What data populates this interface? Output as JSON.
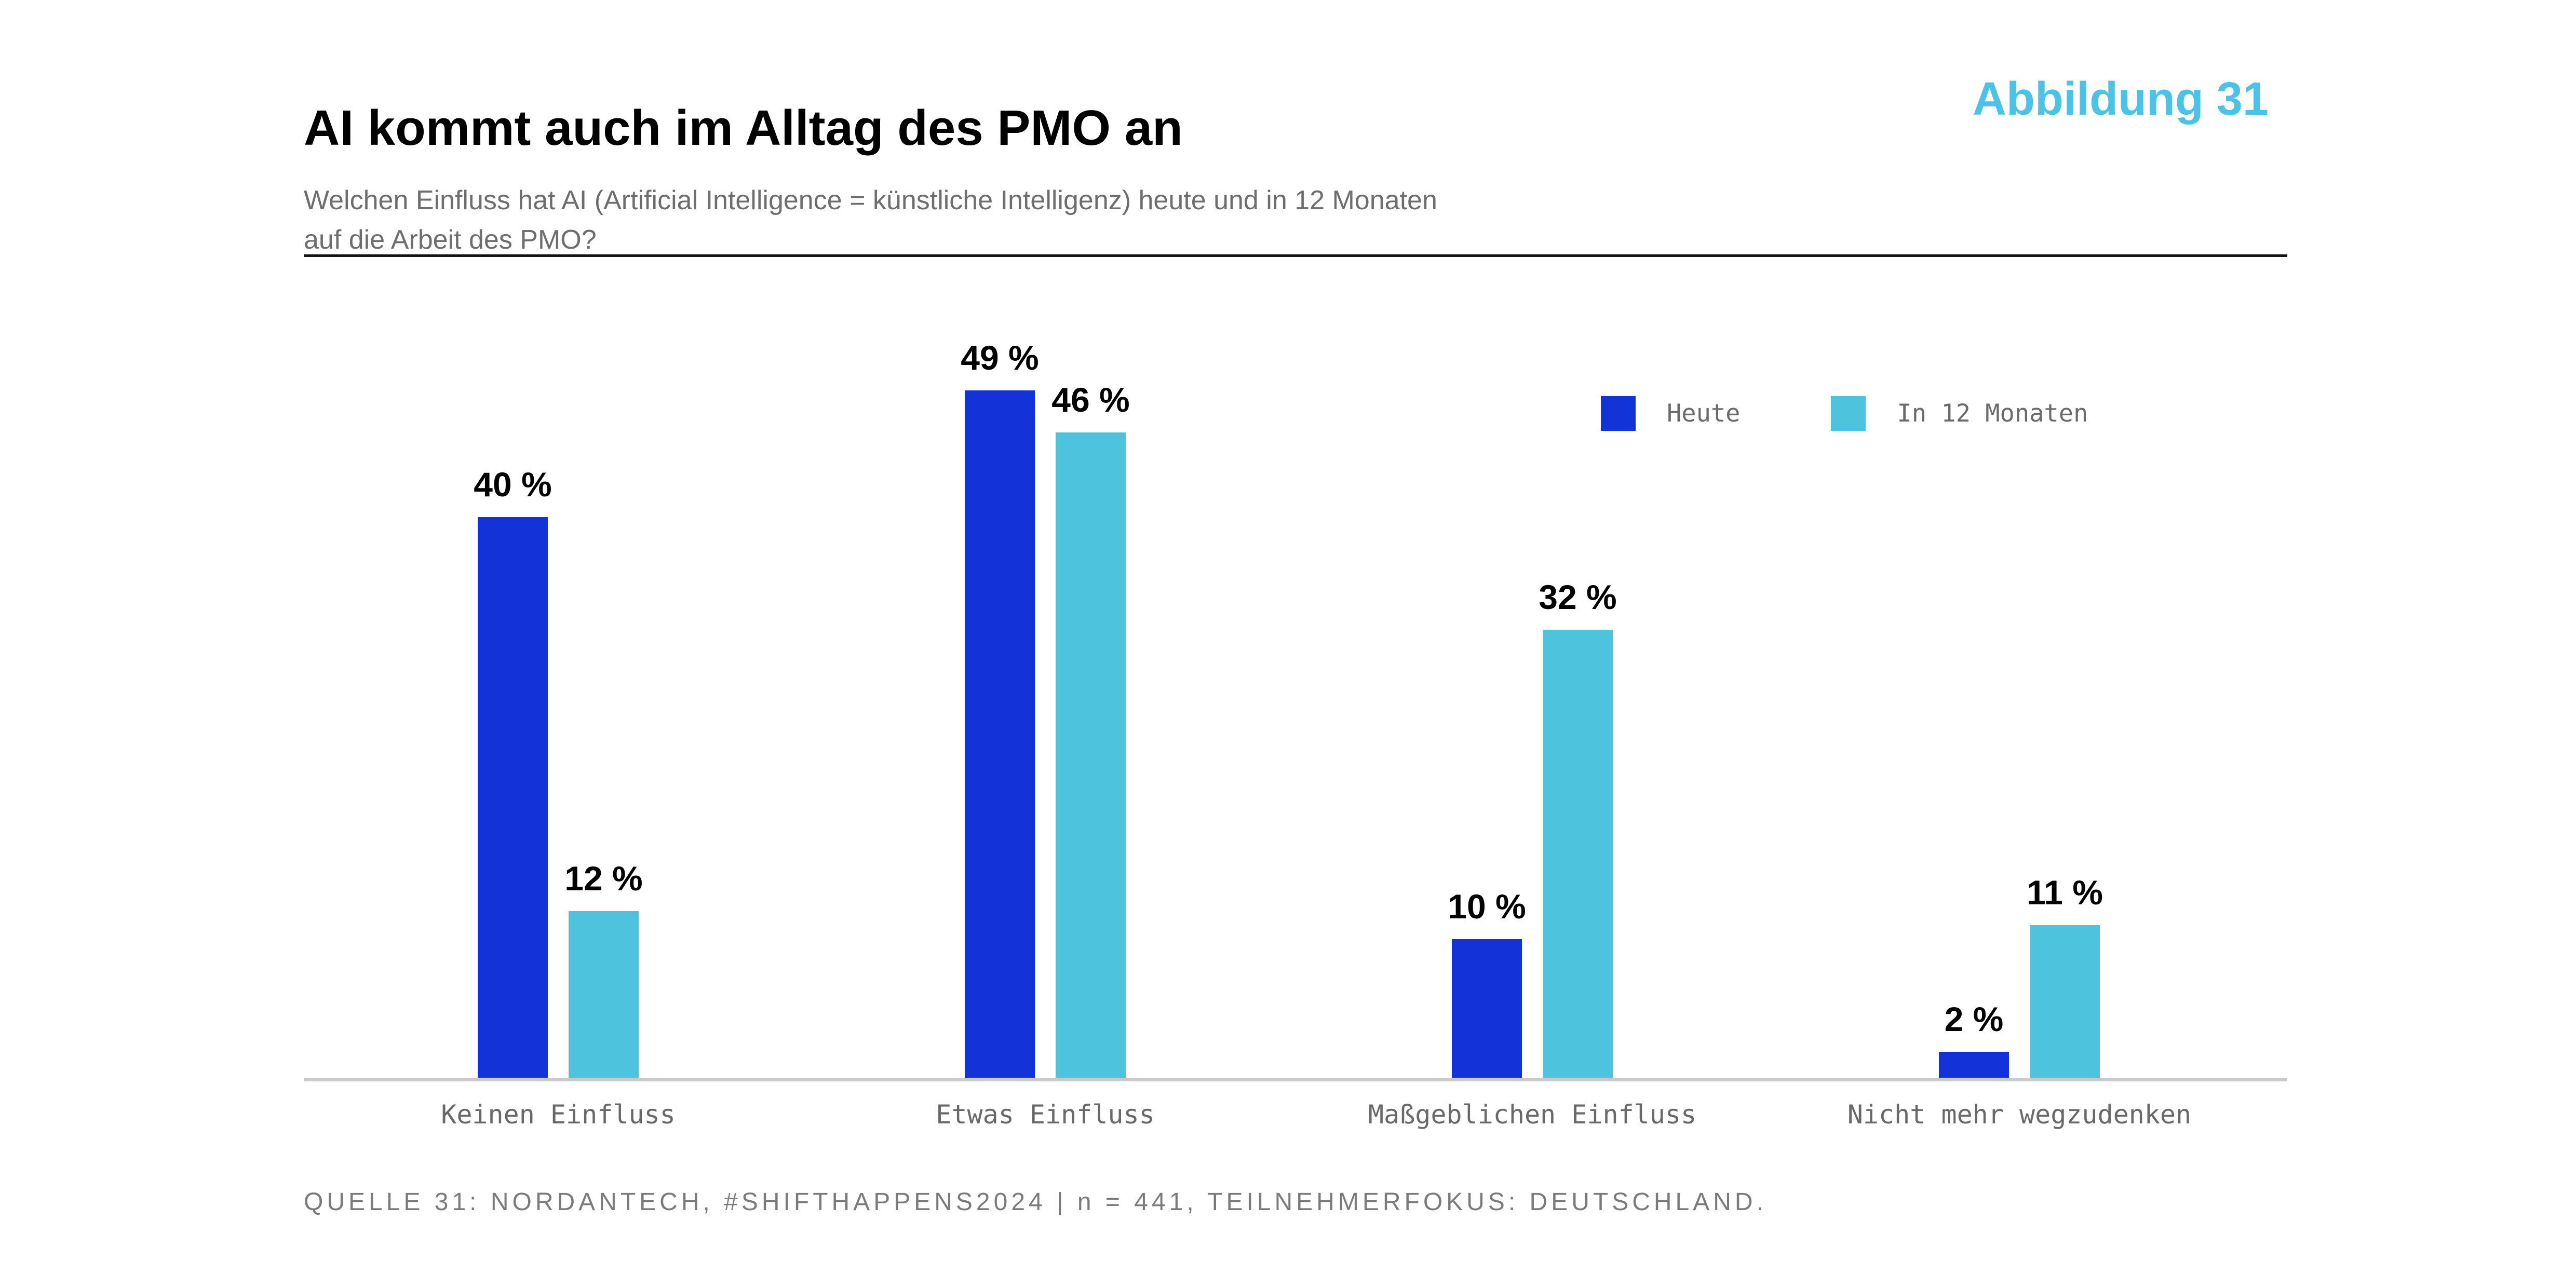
{
  "header": {
    "title": "AI kommt auch im Alltag des PMO an",
    "figure_label": "Abbildung 31",
    "subtitle_line1": "Welchen Einfluss hat AI (Artificial Intelligence = künstliche Intelligenz) heute und in 12 Monaten",
    "subtitle_line2": "auf die Arbeit des PMO?"
  },
  "chart_data": {
    "type": "bar",
    "categories": [
      "Keinen Einfluss",
      "Etwas Einfluss",
      "Maßgeblichen Einfluss",
      "Nicht mehr wegzudenken"
    ],
    "series": [
      {
        "name": "Heute",
        "color": "#1333d9",
        "values": [
          40,
          49,
          10,
          2
        ]
      },
      {
        "name": "In 12 Monaten",
        "color": "#4dc3dd",
        "values": [
          12,
          46,
          32,
          11
        ]
      }
    ],
    "value_suffix": " %",
    "ylim": [
      0,
      55
    ],
    "grid": false,
    "legend_position": "top-right",
    "axis_line_color": "#c9c9c9"
  },
  "footer": {
    "source": "QUELLE 31: NORDANTECH, #SHIFTHAPPENS2024 | n = 441, TEILNEHMERFOKUS: DEUTSCHLAND."
  },
  "colors": {
    "accent_cyan": "#4bc2e6",
    "bar_heute": "#1333d9",
    "bar_in_12_monaten": "#4dc3dd",
    "text_gray": "#6e6e6e"
  }
}
